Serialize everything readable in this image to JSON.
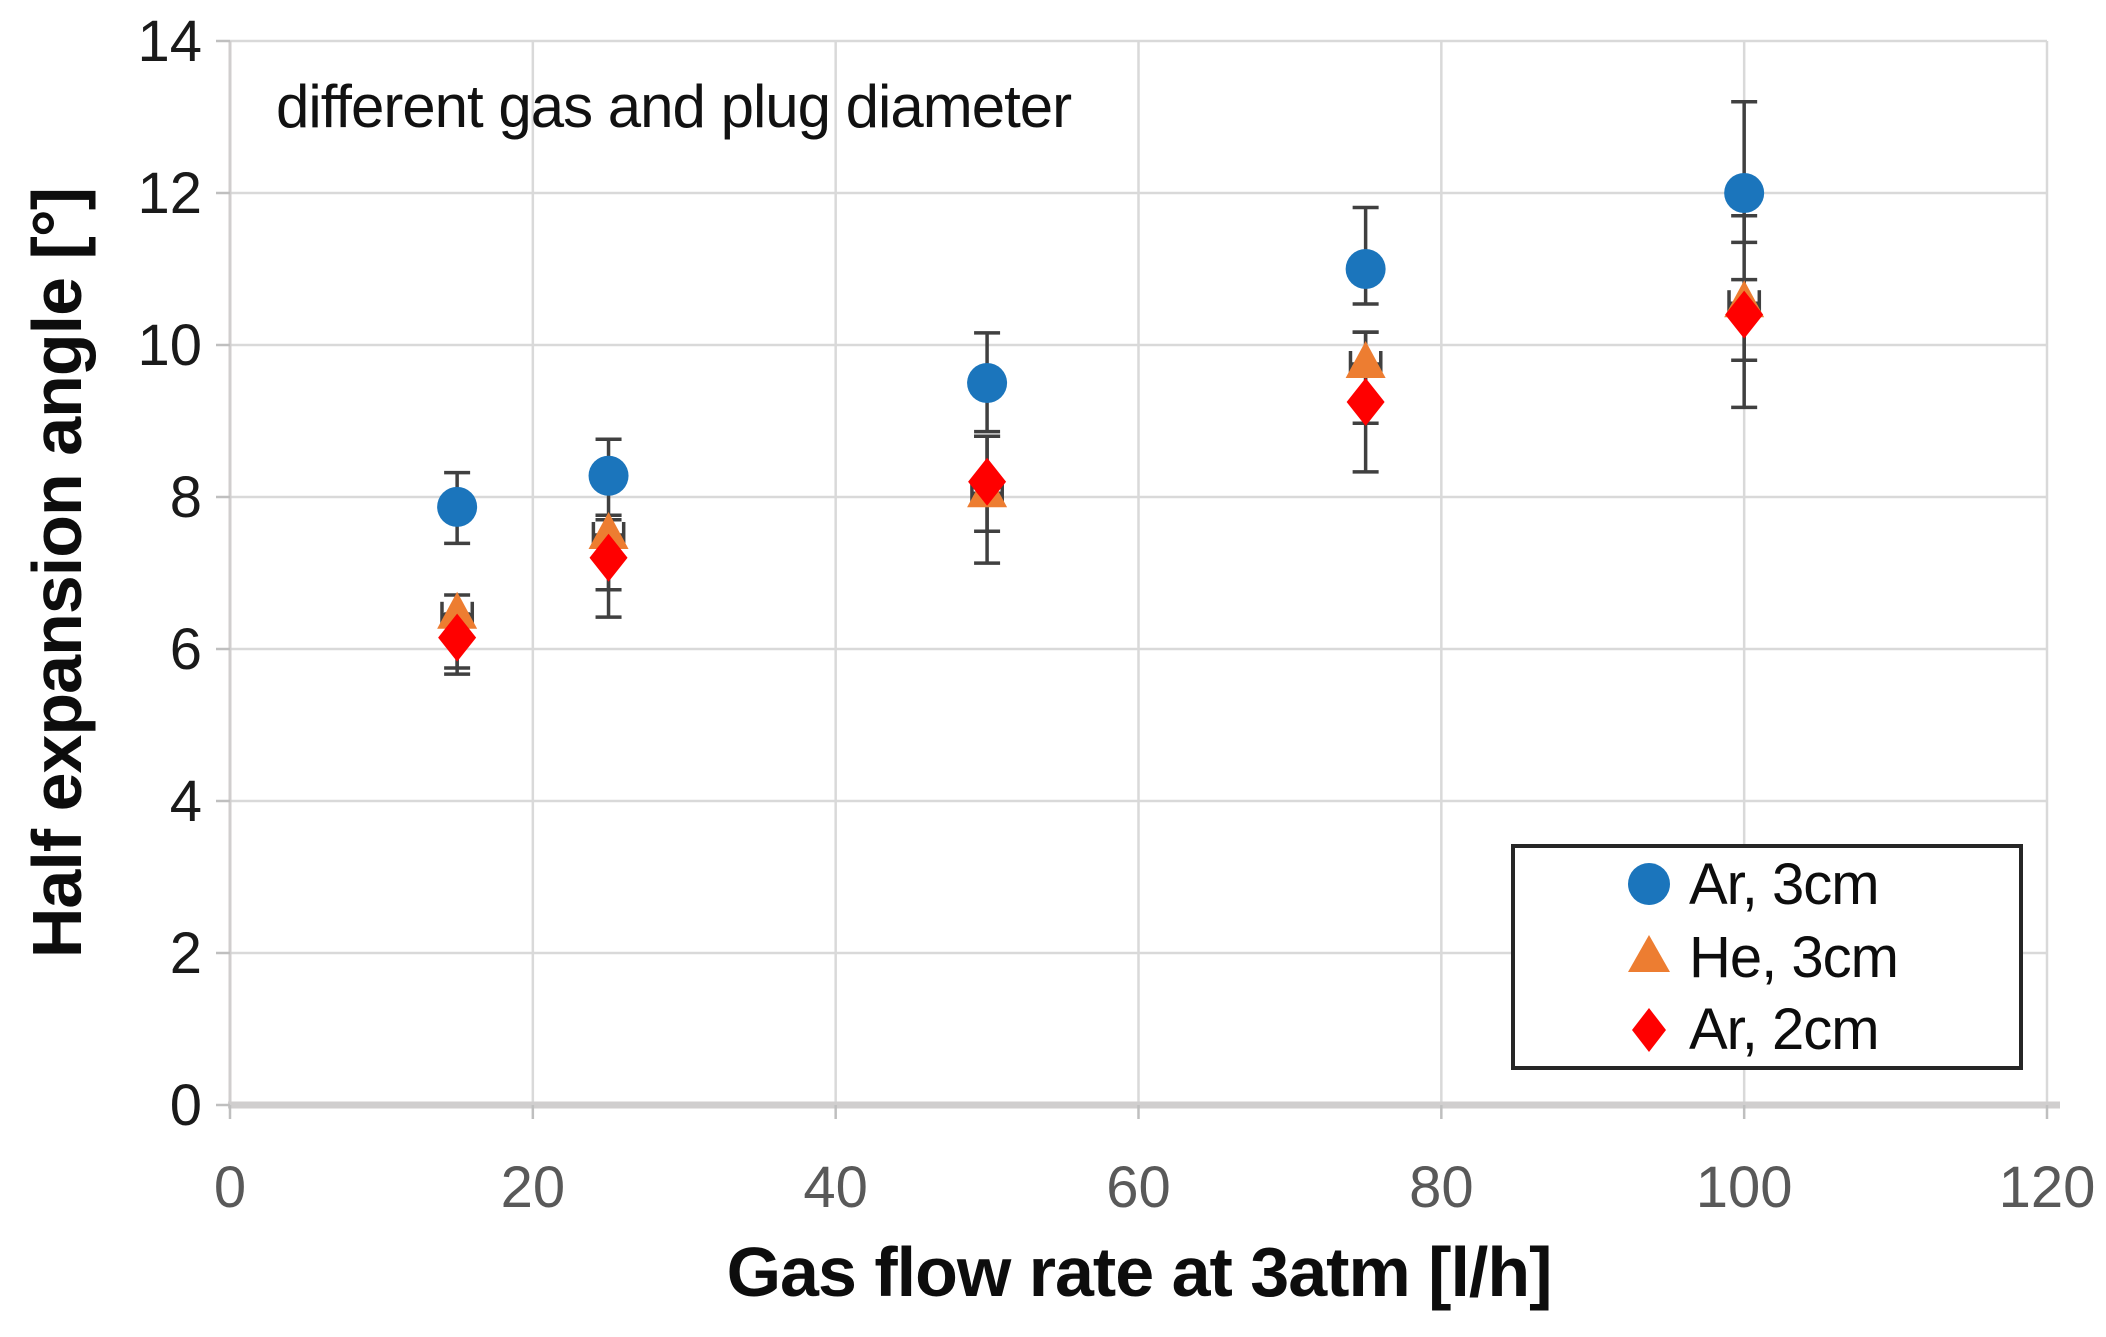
{
  "chart_data": {
    "type": "scatter",
    "annotation": "different gas and plug diameter",
    "xlabel": "Gas flow rate at 3atm [l/h]",
    "ylabel": "Half expansion angle [°]",
    "xlim": [
      0,
      120
    ],
    "ylim": [
      0,
      14
    ],
    "x_ticks": [
      0,
      20,
      40,
      60,
      80,
      100,
      120
    ],
    "y_ticks": [
      0,
      2,
      4,
      6,
      8,
      10,
      12,
      14
    ],
    "grid": true,
    "legend_position": "bottom-right",
    "x": [
      15,
      25,
      50,
      75,
      100
    ],
    "series": [
      {
        "name": "Ar, 3cm",
        "marker": "circle",
        "color": "#1B75BC",
        "y": [
          7.87,
          8.28,
          9.5,
          11.0,
          12.0
        ],
        "err_up": [
          0.45,
          0.48,
          0.66,
          0.81,
          1.2
        ],
        "err_down": [
          0.48,
          0.52,
          0.64,
          0.46,
          0.65
        ],
        "xerr": 0
      },
      {
        "name": "He, 3cm",
        "marker": "triangle",
        "color": "#ED7D31",
        "y": [
          6.45,
          7.5,
          8.05,
          9.75,
          10.55
        ],
        "err_up": [
          0.26,
          0.26,
          0.75,
          0.42,
          0.31
        ],
        "err_down": [
          0.7,
          0.72,
          0.5,
          0.78,
          0.75
        ],
        "xerr": 1
      },
      {
        "name": "Ar, 2cm",
        "marker": "diamond",
        "color": "#FF0000",
        "y": [
          6.15,
          7.2,
          8.2,
          9.25,
          10.4
        ],
        "err_up": [
          0.31,
          0.5,
          0.6,
          0.92,
          1.3
        ],
        "err_down": [
          0.48,
          0.78,
          1.07,
          0.92,
          1.22
        ],
        "xerr": 0
      }
    ],
    "style": {
      "gridline_color": "#D9D9D9",
      "axis_line_color": "#D0CECE",
      "tick_mark_color": "#BFBFBF",
      "x_tick_label_color": "#595959",
      "y_tick_label_color": "#1a1a1a",
      "errorbar_color": "#404040"
    }
  }
}
